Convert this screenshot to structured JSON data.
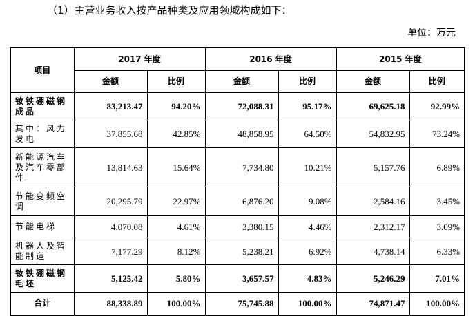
{
  "heading": "（1）主营业务收入按产品种类及应用领域构成如下：",
  "unit": "单位：万元",
  "table": {
    "item_header": "项目",
    "years": [
      "2017 年度",
      "2016 年度",
      "2015 年度"
    ],
    "sub_headers": [
      "金额",
      "比例"
    ],
    "rows": [
      {
        "item": "钕铁硼磁钢成品",
        "bold": true,
        "values": [
          "83,213.47",
          "94.20%",
          "72,088.31",
          "95.17%",
          "69,625.18",
          "92.99%"
        ]
      },
      {
        "item": "其中：风力发电",
        "bold": false,
        "values": [
          "37,855.68",
          "42.85%",
          "48,858.95",
          "64.50%",
          "54,832.95",
          "73.24%"
        ]
      },
      {
        "item": "新能源汽车及汽车零部件",
        "bold": false,
        "values": [
          "13,814.63",
          "15.64%",
          "7,734.80",
          "10.21%",
          "5,157.76",
          "6.89%"
        ]
      },
      {
        "item": "节能变频空调",
        "bold": false,
        "values": [
          "20,295.79",
          "22.97%",
          "6,876.20",
          "9.08%",
          "2,584.16",
          "3.45%"
        ]
      },
      {
        "item": "节能电梯",
        "bold": false,
        "values": [
          "4,070.08",
          "4.61%",
          "3,380.15",
          "4.46%",
          "2,312.17",
          "3.09%"
        ]
      },
      {
        "item": "机器人及智能制造",
        "bold": false,
        "values": [
          "7,177.29",
          "8.12%",
          "5,238.21",
          "6.92%",
          "4,738.14",
          "6.33%"
        ]
      },
      {
        "item": "钕铁硼磁钢毛坯",
        "bold": true,
        "values": [
          "5,125.42",
          "5.80%",
          "3,657.57",
          "4.83%",
          "5,246.29",
          "7.01%"
        ]
      },
      {
        "item": "合计",
        "bold": true,
        "values": [
          "88,338.89",
          "100.00%",
          "75,745.88",
          "100.00%",
          "74,871.47",
          "100.00%"
        ]
      }
    ]
  }
}
